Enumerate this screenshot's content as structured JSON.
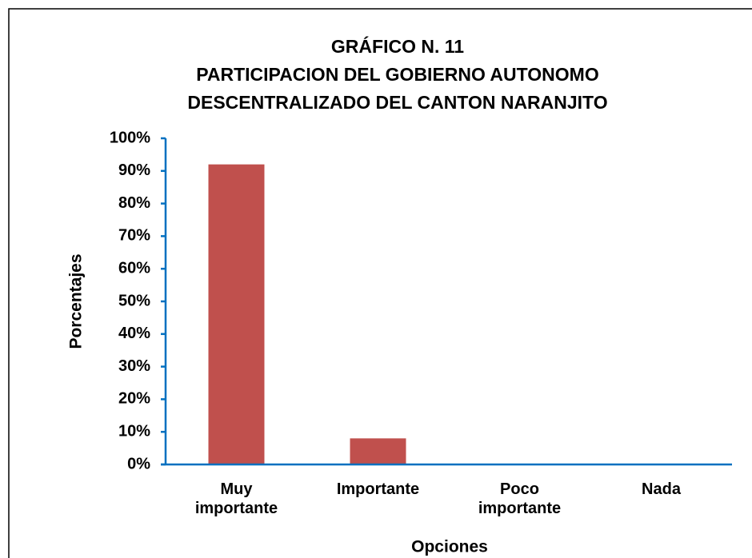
{
  "chart_data": {
    "type": "bar",
    "title": [
      "GRÁFICO N. 11",
      "PARTICIPACION DEL GOBIERNO AUTONOMO",
      "DESCENTRALIZADO DEL CANTON NARANJITO"
    ],
    "x_label": "Opciones",
    "y_label": "Porcentajes",
    "categories": [
      "Muy importante",
      "Importante",
      "Poco importante",
      "Nada"
    ],
    "values": [
      92,
      8,
      0,
      0
    ],
    "color": "#c0504d",
    "ylim": [
      0,
      100
    ],
    "yticks": [
      {
        "value": 0,
        "label": "0%"
      },
      {
        "value": 10,
        "label": "10%"
      },
      {
        "value": 20,
        "label": "20%"
      },
      {
        "value": 30,
        "label": "30%"
      },
      {
        "value": 40,
        "label": "40%"
      },
      {
        "value": 50,
        "label": "50%"
      },
      {
        "value": 60,
        "label": "60%"
      },
      {
        "value": 70,
        "label": "70%"
      },
      {
        "value": 80,
        "label": "80%"
      },
      {
        "value": 90,
        "label": "90%"
      },
      {
        "value": 100,
        "label": "100%"
      }
    ],
    "grid": false
  }
}
